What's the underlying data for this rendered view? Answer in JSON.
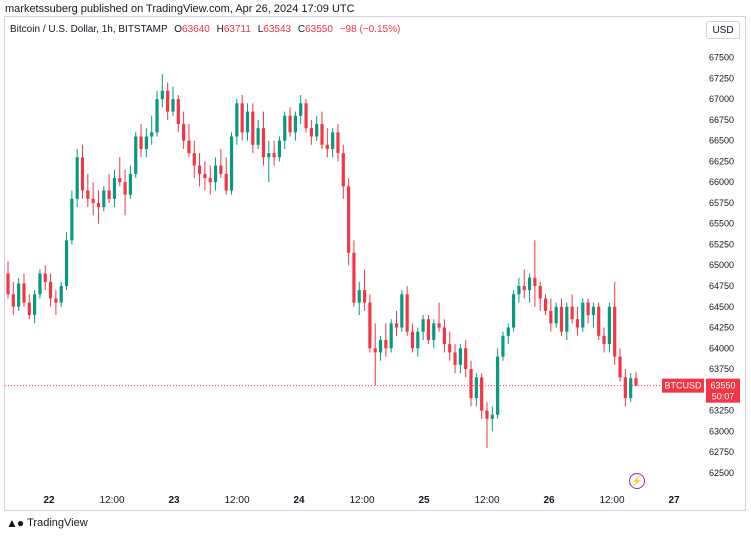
{
  "header": {
    "published": "marketssuberg published on TradingView.com, Apr 26, 2024 17:09 UTC"
  },
  "legend": {
    "symbol": "Bitcoin / U.S. Dollar, 1h, BITSTAMP",
    "o_label": "O",
    "o": "63640",
    "h_label": "H",
    "h": "63711",
    "l_label": "L",
    "l": "63543",
    "c_label": "C",
    "c": "63550",
    "change": "−98 (−0.15%)"
  },
  "currency_button": "USD",
  "price_tag": {
    "symbol": "BTCUSD",
    "price": "63550",
    "countdown": "50:07"
  },
  "footer": {
    "brand": "TradingView"
  },
  "icons": {
    "logo": "tradingview-logo-icon",
    "event": "lightning-icon"
  },
  "colors": {
    "up": "#089981",
    "down": "#f23645",
    "price_line": "#f23645",
    "event": "#9c27b0"
  },
  "chart_data": {
    "type": "candlestick",
    "timeframe": "1h",
    "y_ticks": [
      "62500",
      "62750",
      "63000",
      "63250",
      "63500",
      "63750",
      "64000",
      "64250",
      "64500",
      "64750",
      "65000",
      "65250",
      "65500",
      "65750",
      "66000",
      "66250",
      "66500",
      "66750",
      "67000",
      "67250",
      "67500"
    ],
    "ylim": [
      62450,
      67700
    ],
    "x_ticks": [
      "22",
      "12:00",
      "23",
      "12:00",
      "24",
      "12:00",
      "25",
      "12:00",
      "26",
      "12:00",
      "27"
    ],
    "last_price": 63550,
    "candles": [
      [
        64900,
        65050,
        64600,
        64650
      ],
      [
        64650,
        64800,
        64400,
        64500
      ],
      [
        64500,
        64850,
        64450,
        64780
      ],
      [
        64780,
        64900,
        64500,
        64550
      ],
      [
        64550,
        64650,
        64350,
        64400
      ],
      [
        64400,
        64700,
        64300,
        64650
      ],
      [
        64650,
        64950,
        64600,
        64900
      ],
      [
        64900,
        65000,
        64700,
        64800
      ],
      [
        64800,
        64900,
        64500,
        64600
      ],
      [
        64600,
        64700,
        64400,
        64550
      ],
      [
        64550,
        64800,
        64500,
        64750
      ],
      [
        64750,
        65400,
        64700,
        65300
      ],
      [
        65300,
        65900,
        65250,
        65800
      ],
      [
        65800,
        66400,
        65700,
        66300
      ],
      [
        66300,
        66450,
        65800,
        65900
      ],
      [
        65900,
        66100,
        65700,
        65800
      ],
      [
        65800,
        66000,
        65600,
        65750
      ],
      [
        65750,
        65900,
        65500,
        65700
      ],
      [
        65700,
        65950,
        65650,
        65900
      ],
      [
        65900,
        66100,
        65750,
        65800
      ],
      [
        65800,
        66150,
        65700,
        66050
      ],
      [
        66050,
        66300,
        65950,
        66000
      ],
      [
        66000,
        66150,
        65600,
        65850
      ],
      [
        65850,
        66200,
        65800,
        66100
      ],
      [
        66100,
        66600,
        66050,
        66550
      ],
      [
        66550,
        66700,
        66300,
        66400
      ],
      [
        66400,
        66650,
        66300,
        66550
      ],
      [
        66550,
        66800,
        66450,
        66600
      ],
      [
        66600,
        67100,
        66550,
        67000
      ],
      [
        67000,
        67300,
        66900,
        67100
      ],
      [
        67100,
        67200,
        66750,
        66850
      ],
      [
        66850,
        67150,
        66800,
        67000
      ],
      [
        67000,
        67050,
        66600,
        66700
      ],
      [
        66700,
        66850,
        66400,
        66500
      ],
      [
        66500,
        66700,
        66300,
        66350
      ],
      [
        66350,
        66500,
        66050,
        66200
      ],
      [
        66200,
        66350,
        65950,
        66100
      ],
      [
        66100,
        66250,
        65900,
        66050
      ],
      [
        66050,
        66200,
        65850,
        66000
      ],
      [
        66000,
        66300,
        65900,
        66200
      ],
      [
        66200,
        66400,
        66050,
        66100
      ],
      [
        66100,
        66300,
        65850,
        65900
      ],
      [
        65900,
        66600,
        65850,
        66550
      ],
      [
        66550,
        67000,
        66450,
        66950
      ],
      [
        66950,
        67050,
        66500,
        66600
      ],
      [
        66600,
        66950,
        66500,
        66850
      ],
      [
        66850,
        66950,
        66350,
        66450
      ],
      [
        66450,
        66750,
        66400,
        66650
      ],
      [
        66650,
        66850,
        66200,
        66300
      ],
      [
        66300,
        66500,
        66000,
        66350
      ],
      [
        66350,
        66500,
        66200,
        66300
      ],
      [
        66300,
        66550,
        66250,
        66500
      ],
      [
        66500,
        66850,
        66400,
        66800
      ],
      [
        66800,
        66900,
        66550,
        66600
      ],
      [
        66600,
        66850,
        66500,
        66800
      ],
      [
        66800,
        67050,
        66700,
        66950
      ],
      [
        66950,
        67000,
        66600,
        66650
      ],
      [
        66650,
        66750,
        66450,
        66550
      ],
      [
        66550,
        66800,
        66500,
        66700
      ],
      [
        66700,
        66850,
        66400,
        66450
      ],
      [
        66450,
        66650,
        66300,
        66400
      ],
      [
        66400,
        66650,
        66300,
        66600
      ],
      [
        66600,
        66700,
        66250,
        66350
      ],
      [
        66350,
        66450,
        65800,
        65950
      ],
      [
        65950,
        66050,
        65000,
        65150
      ],
      [
        65150,
        65300,
        64500,
        64550
      ],
      [
        64550,
        64800,
        64400,
        64700
      ],
      [
        64700,
        64950,
        64450,
        64550
      ],
      [
        64550,
        64650,
        63950,
        64000
      ],
      [
        64000,
        64300,
        63550,
        63950
      ],
      [
        63950,
        64150,
        63850,
        64100
      ],
      [
        64100,
        64300,
        63900,
        64000
      ],
      [
        64000,
        64350,
        63950,
        64300
      ],
      [
        64300,
        64450,
        64150,
        64250
      ],
      [
        64250,
        64700,
        64200,
        64650
      ],
      [
        64650,
        64750,
        64150,
        64200
      ],
      [
        64200,
        64300,
        63950,
        64000
      ],
      [
        64000,
        64250,
        63900,
        64200
      ],
      [
        64200,
        64400,
        64100,
        64350
      ],
      [
        64350,
        64400,
        64050,
        64100
      ],
      [
        64100,
        64350,
        64000,
        64300
      ],
      [
        64300,
        64550,
        64200,
        64250
      ],
      [
        64250,
        64350,
        63950,
        64050
      ],
      [
        64050,
        64200,
        63850,
        63950
      ],
      [
        63950,
        64050,
        63700,
        63800
      ],
      [
        63800,
        64050,
        63700,
        64000
      ],
      [
        64000,
        64100,
        63650,
        63750
      ],
      [
        63750,
        63850,
        63300,
        63400
      ],
      [
        63400,
        63700,
        63300,
        63650
      ],
      [
        63650,
        63700,
        63150,
        63250
      ],
      [
        63250,
        63350,
        62800,
        63150
      ],
      [
        63150,
        63300,
        63000,
        63200
      ],
      [
        63200,
        64000,
        63150,
        63900
      ],
      [
        63900,
        64200,
        63850,
        64150
      ],
      [
        64150,
        64300,
        64050,
        64250
      ],
      [
        64250,
        64700,
        64200,
        64650
      ],
      [
        64650,
        64850,
        64550,
        64750
      ],
      [
        64750,
        64950,
        64600,
        64700
      ],
      [
        64700,
        64900,
        64550,
        64850
      ],
      [
        64850,
        65300,
        64500,
        64750
      ],
      [
        64750,
        64800,
        64450,
        64600
      ],
      [
        64600,
        64650,
        64400,
        64450
      ],
      [
        64450,
        64600,
        64200,
        64300
      ],
      [
        64300,
        64550,
        64250,
        64500
      ],
      [
        64500,
        64600,
        64150,
        64200
      ],
      [
        64200,
        64550,
        64100,
        64500
      ],
      [
        64500,
        64650,
        64300,
        64350
      ],
      [
        64350,
        64500,
        64150,
        64250
      ],
      [
        64250,
        64600,
        64200,
        64550
      ],
      [
        64550,
        64600,
        64300,
        64400
      ],
      [
        64400,
        64550,
        64250,
        64500
      ],
      [
        64500,
        64550,
        64100,
        64150
      ],
      [
        64150,
        64250,
        63950,
        64050
      ],
      [
        64050,
        64550,
        63950,
        64500
      ],
      [
        64500,
        64800,
        63800,
        63900
      ],
      [
        63900,
        64000,
        63600,
        63650
      ],
      [
        63650,
        63750,
        63300,
        63400
      ],
      [
        63400,
        63700,
        63350,
        63640
      ],
      [
        63640,
        63711,
        63543,
        63550
      ]
    ]
  }
}
